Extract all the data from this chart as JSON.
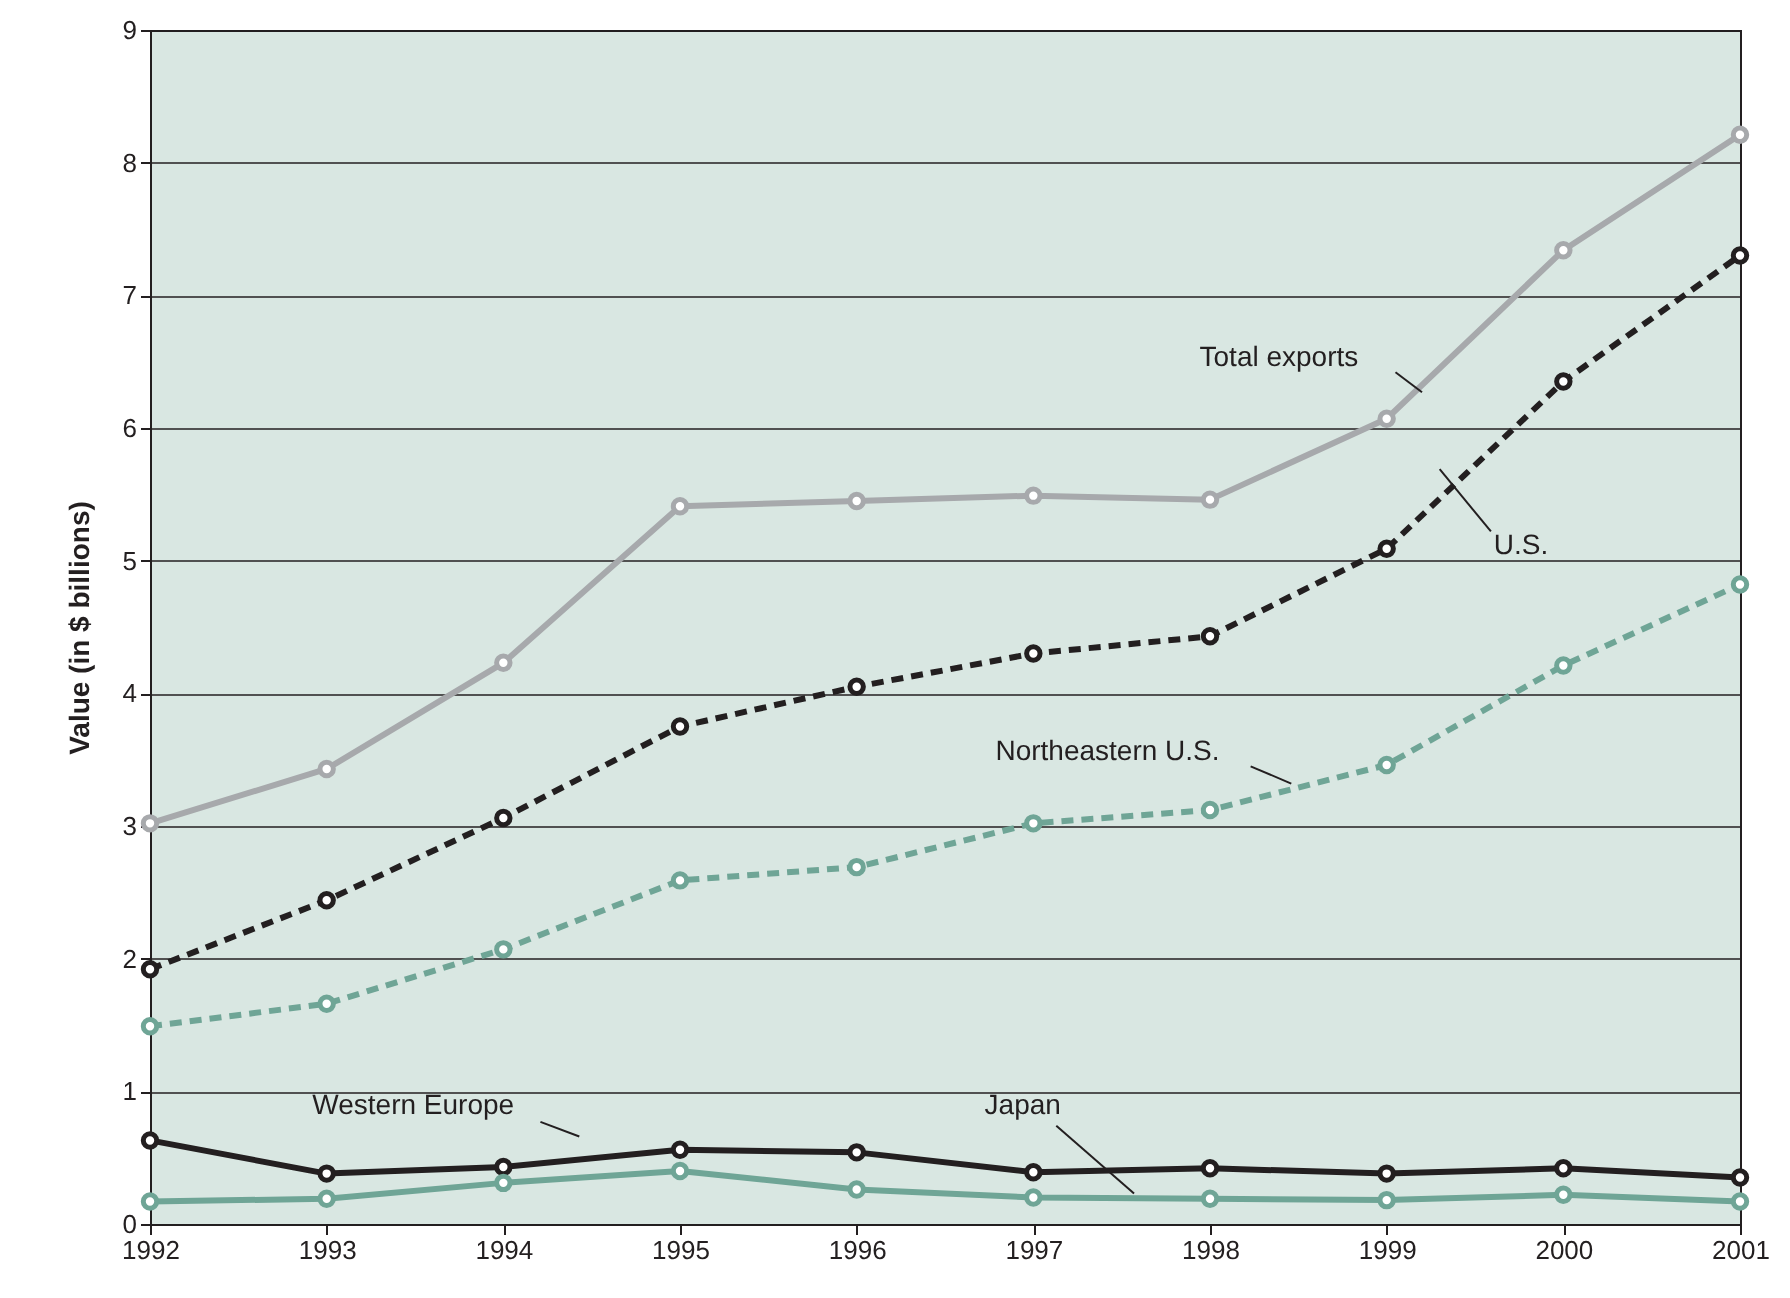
{
  "chart_data": {
    "type": "line",
    "ylabel": "Value (in $ billions)",
    "x": [
      1992,
      1993,
      1994,
      1995,
      1996,
      1997,
      1998,
      1999,
      2000,
      2001
    ],
    "xlim": [
      1992,
      2001
    ],
    "xticks": [
      1992,
      1993,
      1994,
      1995,
      1996,
      1997,
      1998,
      1999,
      2000,
      2001
    ],
    "ylim": [
      0,
      9
    ],
    "yticks": [
      0,
      1,
      2,
      3,
      4,
      5,
      6,
      7,
      8,
      9
    ],
    "grid": "y",
    "marker": "circle",
    "series": [
      {
        "name": "Total exports",
        "color": "#a7a9ac",
        "line_style": "solid",
        "values": [
          3.02,
          3.43,
          4.23,
          5.41,
          5.45,
          5.49,
          5.46,
          6.07,
          7.34,
          8.21
        ]
      },
      {
        "name": "U.S.",
        "color": "#231f20",
        "line_style": "dashed",
        "values": [
          1.92,
          2.44,
          3.06,
          3.75,
          4.05,
          4.3,
          4.43,
          5.09,
          6.35,
          7.3
        ]
      },
      {
        "name": "Northeastern U.S.",
        "color": "#6fa596",
        "line_style": "dashed",
        "values": [
          1.49,
          1.66,
          2.07,
          2.59,
          2.69,
          3.02,
          3.12,
          3.46,
          4.21,
          4.82
        ]
      },
      {
        "name": "Western Europe",
        "color": "#231f20",
        "line_style": "solid",
        "values": [
          0.63,
          0.38,
          0.43,
          0.56,
          0.54,
          0.39,
          0.42,
          0.38,
          0.42,
          0.35
        ]
      },
      {
        "name": "Japan",
        "color": "#6fa596",
        "line_style": "solid",
        "values": [
          0.17,
          0.19,
          0.31,
          0.4,
          0.26,
          0.2,
          0.19,
          0.18,
          0.22,
          0.17
        ]
      }
    ]
  }
}
